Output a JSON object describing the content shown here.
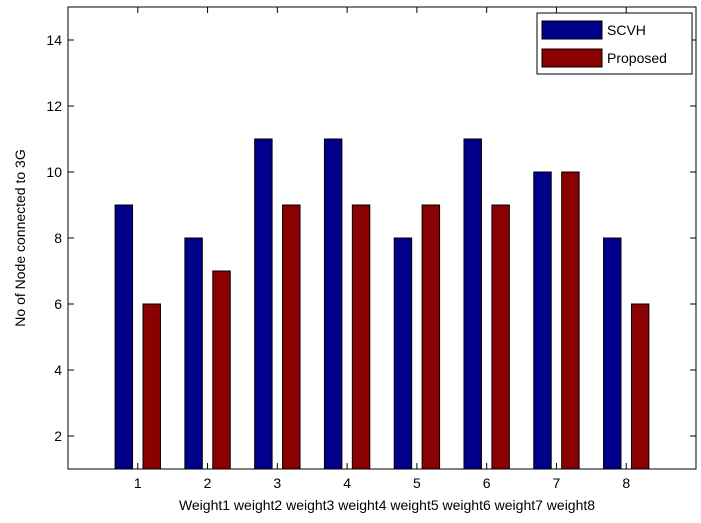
{
  "chart_data": {
    "type": "bar",
    "categories": [
      "1",
      "2",
      "3",
      "4",
      "5",
      "6",
      "7",
      "8"
    ],
    "series": [
      {
        "name": "SCVH",
        "values": [
          9,
          8,
          11,
          11,
          8,
          11,
          10,
          8
        ],
        "color": "#00008b"
      },
      {
        "name": "Proposed",
        "values": [
          6,
          7,
          9,
          9,
          9,
          9,
          10,
          6
        ],
        "color": "#8b0000"
      }
    ],
    "title": "",
    "xlabel": "Weight1 weight2 weight3 weight4 weight5 weight6 weight7 weight8",
    "ylabel": "No of Node connected to 3G",
    "ylim": [
      1,
      15
    ],
    "yticks": [
      2,
      4,
      6,
      8,
      10,
      12,
      14
    ],
    "grid": false,
    "legend_position": "top-right"
  }
}
